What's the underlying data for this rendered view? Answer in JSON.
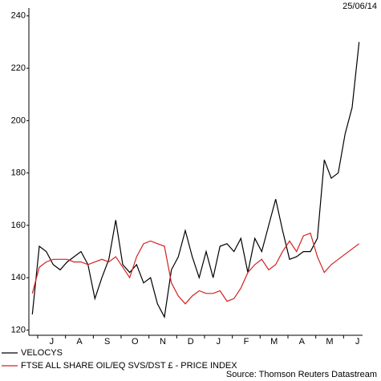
{
  "chart_data": {
    "type": "line",
    "date_label": "25/06/14",
    "source": "Source: Thomson Reuters Datastream",
    "categories": [
      null,
      null,
      null,
      "J",
      null,
      null,
      null,
      "A",
      null,
      null,
      null,
      "S",
      null,
      null,
      null,
      "O",
      null,
      null,
      null,
      "N",
      null,
      null,
      null,
      "D",
      null,
      null,
      null,
      "J",
      null,
      null,
      null,
      "F",
      null,
      null,
      null,
      "M",
      null,
      null,
      null,
      "A",
      null,
      null,
      null,
      "M",
      null,
      null,
      null,
      "J"
    ],
    "series": [
      {
        "name": "VELOCYS",
        "color": "#000000",
        "values": [
          126,
          152,
          150,
          145,
          143,
          146,
          148,
          150,
          145,
          132,
          140,
          147,
          162,
          145,
          142,
          145,
          138,
          140,
          130,
          125,
          143,
          148,
          158,
          148,
          140,
          150,
          140,
          152,
          153,
          150,
          155,
          142,
          155,
          150,
          160,
          170,
          158,
          147,
          148,
          150,
          150,
          155,
          185,
          178,
          180,
          195,
          205,
          230
        ]
      },
      {
        "name": "FTSE ALL SHARE OIL/EQ SVS/DST £ - PRICE INDEX",
        "color": "#d42020",
        "values": [
          134,
          144,
          146,
          147,
          147,
          147,
          146,
          146,
          145,
          146,
          147,
          146,
          148,
          144,
          140,
          148,
          153,
          154,
          153,
          152,
          138,
          133,
          130,
          133,
          135,
          134,
          134,
          135,
          131,
          132,
          136,
          142,
          145,
          147,
          143,
          145,
          150,
          154,
          150,
          156,
          157,
          148,
          142,
          145,
          147,
          149,
          151,
          153
        ]
      }
    ],
    "ylim": [
      118,
      243
    ],
    "yticks": [
      120,
      140,
      160,
      180,
      200,
      220,
      240
    ]
  }
}
